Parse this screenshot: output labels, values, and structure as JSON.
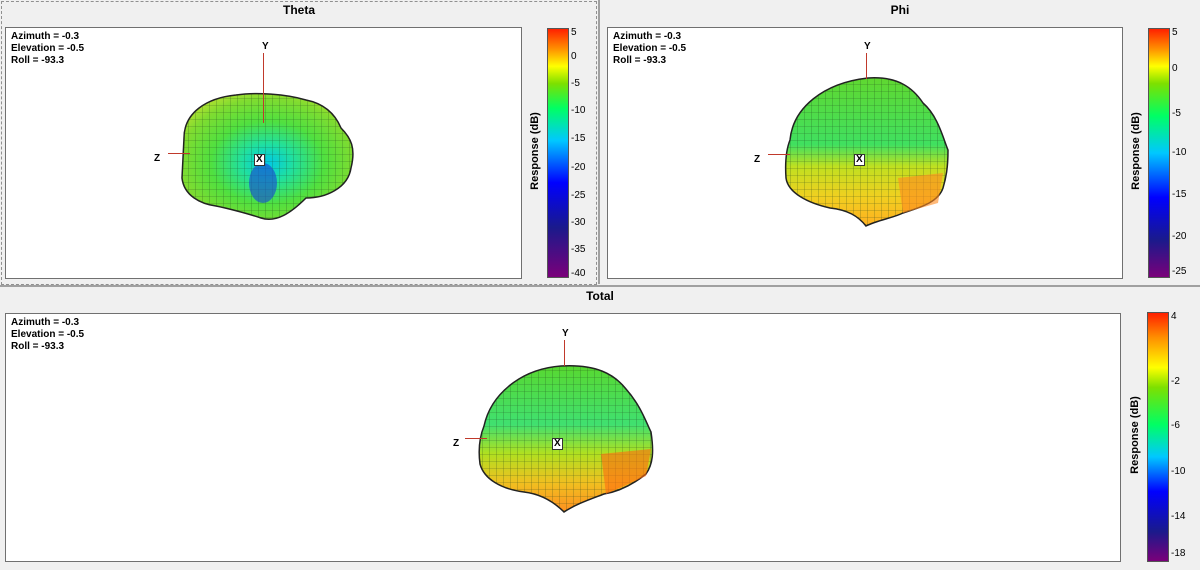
{
  "panels": {
    "theta": {
      "title": "Theta",
      "info": [
        "Azimuth = -0.3",
        "Elevation = -0.5",
        "Roll = -93.3"
      ],
      "axes": {
        "y": "Y",
        "z": "Z",
        "x": "X"
      },
      "colorbar": {
        "label": "Response  (dB)",
        "ticks": [
          "5",
          "0",
          "-5",
          "-10",
          "-15",
          "-20",
          "-25",
          "-30",
          "-35",
          "-40"
        ]
      }
    },
    "phi": {
      "title": "Phi",
      "info": [
        "Azimuth = -0.3",
        "Elevation = -0.5",
        "Roll = -93.3"
      ],
      "axes": {
        "y": "Y",
        "z": "Z",
        "x": "X"
      },
      "colorbar": {
        "label": "Response  (dB)",
        "ticks": [
          "5",
          "0",
          "-5",
          "-10",
          "-15",
          "-20",
          "-25"
        ]
      }
    },
    "total": {
      "title": "Total",
      "info": [
        "Azimuth = -0.3",
        "Elevation = -0.5",
        "Roll = -93.3"
      ],
      "axes": {
        "y": "Y",
        "z": "Z",
        "x": "X"
      },
      "colorbar": {
        "label": "Response  (dB)",
        "ticks": [
          "4",
          "-2",
          "-6",
          "-10",
          "-14",
          "-18"
        ]
      }
    }
  },
  "colors": {
    "scale": [
      "#7a007a",
      "#1a1a8c",
      "#0000ff",
      "#00c8ff",
      "#00ff64",
      "#7de000",
      "#ffff00",
      "#ff9000",
      "#ff2000"
    ]
  }
}
